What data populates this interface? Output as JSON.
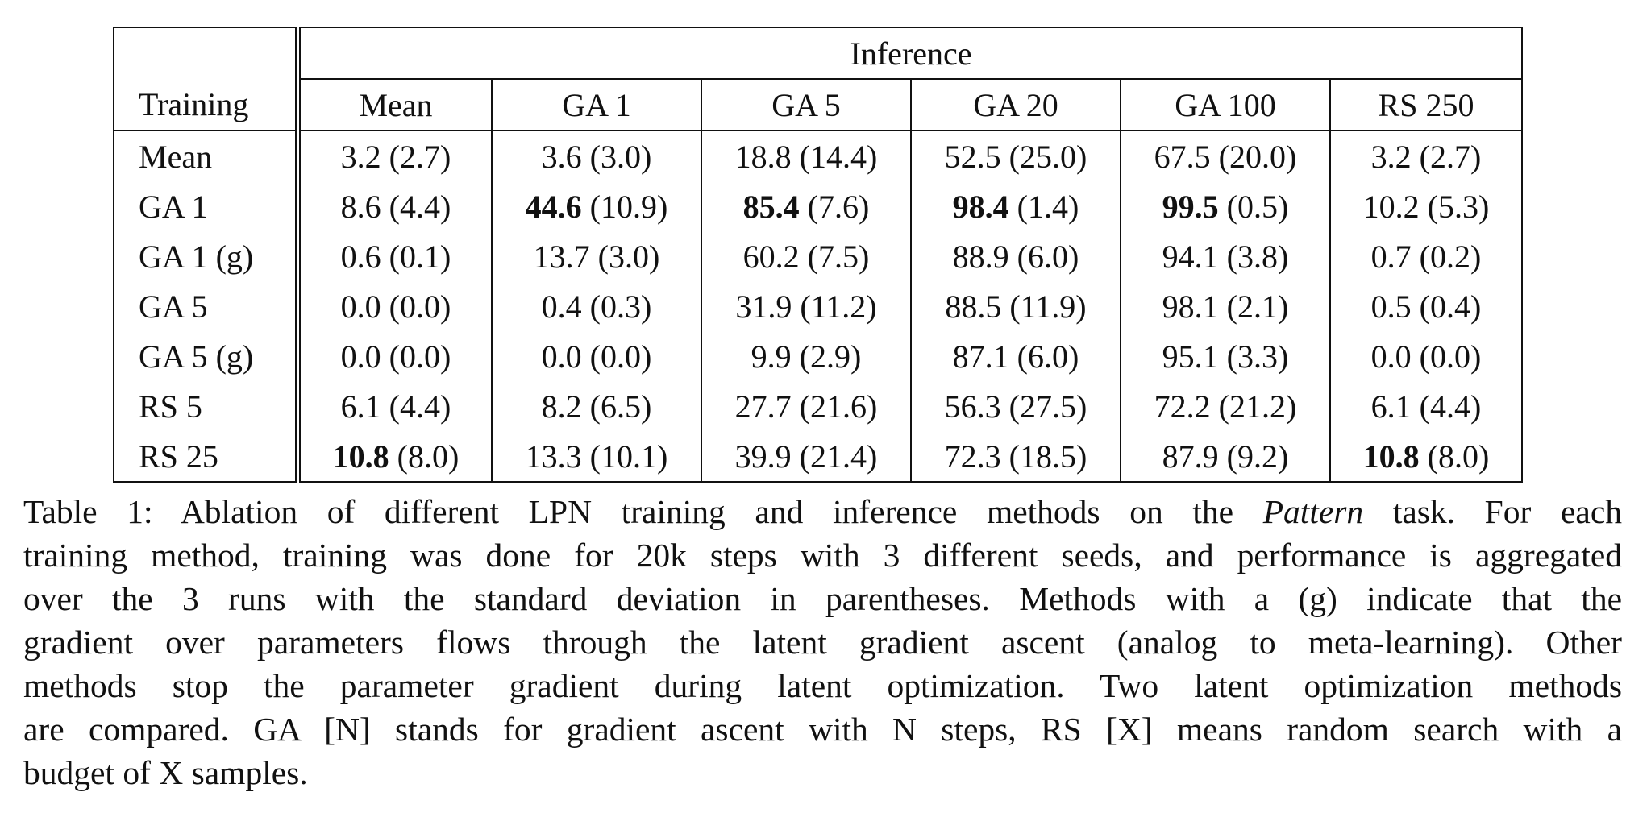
{
  "table": {
    "header": {
      "group": "Inference",
      "row_label": "Training",
      "columns": [
        "Mean",
        "GA 1",
        "GA 5",
        "GA 20",
        "GA 100",
        "RS 250"
      ]
    },
    "rows": [
      {
        "label": "Mean",
        "cells": [
          {
            "value": "3.2",
            "sd": "(2.7)",
            "bold": false
          },
          {
            "value": "3.6",
            "sd": "(3.0)",
            "bold": false
          },
          {
            "value": "18.8",
            "sd": "(14.4)",
            "bold": false
          },
          {
            "value": "52.5",
            "sd": "(25.0)",
            "bold": false
          },
          {
            "value": "67.5",
            "sd": "(20.0)",
            "bold": false
          },
          {
            "value": "3.2",
            "sd": "(2.7)",
            "bold": false
          }
        ]
      },
      {
        "label": "GA 1",
        "cells": [
          {
            "value": "8.6",
            "sd": "(4.4)",
            "bold": false
          },
          {
            "value": "44.6",
            "sd": "(10.9)",
            "bold": true
          },
          {
            "value": "85.4",
            "sd": "(7.6)",
            "bold": true
          },
          {
            "value": "98.4",
            "sd": "(1.4)",
            "bold": true
          },
          {
            "value": "99.5",
            "sd": "(0.5)",
            "bold": true
          },
          {
            "value": "10.2",
            "sd": "(5.3)",
            "bold": false
          }
        ]
      },
      {
        "label": "GA 1 (g)",
        "cells": [
          {
            "value": "0.6",
            "sd": "(0.1)",
            "bold": false
          },
          {
            "value": "13.7",
            "sd": "(3.0)",
            "bold": false
          },
          {
            "value": "60.2",
            "sd": "(7.5)",
            "bold": false
          },
          {
            "value": "88.9",
            "sd": "(6.0)",
            "bold": false
          },
          {
            "value": "94.1",
            "sd": "(3.8)",
            "bold": false
          },
          {
            "value": "0.7",
            "sd": "(0.2)",
            "bold": false
          }
        ]
      },
      {
        "label": "GA 5",
        "cells": [
          {
            "value": "0.0",
            "sd": "(0.0)",
            "bold": false
          },
          {
            "value": "0.4",
            "sd": "(0.3)",
            "bold": false
          },
          {
            "value": "31.9",
            "sd": "(11.2)",
            "bold": false
          },
          {
            "value": "88.5",
            "sd": "(11.9)",
            "bold": false
          },
          {
            "value": "98.1",
            "sd": "(2.1)",
            "bold": false
          },
          {
            "value": "0.5",
            "sd": "(0.4)",
            "bold": false
          }
        ]
      },
      {
        "label": "GA 5 (g)",
        "cells": [
          {
            "value": "0.0",
            "sd": "(0.0)",
            "bold": false
          },
          {
            "value": "0.0",
            "sd": "(0.0)",
            "bold": false
          },
          {
            "value": "9.9",
            "sd": "(2.9)",
            "bold": false
          },
          {
            "value": "87.1",
            "sd": "(6.0)",
            "bold": false
          },
          {
            "value": "95.1",
            "sd": "(3.3)",
            "bold": false
          },
          {
            "value": "0.0",
            "sd": "(0.0)",
            "bold": false
          }
        ]
      },
      {
        "label": "RS 5",
        "cells": [
          {
            "value": "6.1",
            "sd": "(4.4)",
            "bold": false
          },
          {
            "value": "8.2",
            "sd": "(6.5)",
            "bold": false
          },
          {
            "value": "27.7",
            "sd": "(21.6)",
            "bold": false
          },
          {
            "value": "56.3",
            "sd": "(27.5)",
            "bold": false
          },
          {
            "value": "72.2",
            "sd": "(21.2)",
            "bold": false
          },
          {
            "value": "6.1",
            "sd": "(4.4)",
            "bold": false
          }
        ]
      },
      {
        "label": "RS 25",
        "cells": [
          {
            "value": "10.8",
            "sd": "(8.0)",
            "bold": true
          },
          {
            "value": "13.3",
            "sd": "(10.1)",
            "bold": false
          },
          {
            "value": "39.9",
            "sd": "(21.4)",
            "bold": false
          },
          {
            "value": "72.3",
            "sd": "(18.5)",
            "bold": false
          },
          {
            "value": "87.9",
            "sd": "(9.2)",
            "bold": false
          },
          {
            "value": "10.8",
            "sd": "(8.0)",
            "bold": true
          }
        ]
      }
    ]
  },
  "caption": {
    "lines": [
      [
        {
          "text": "Table 1: Ablation of different LPN training and inference methods on the ",
          "italic": false
        },
        {
          "text": "Pattern",
          "italic": true
        },
        {
          "text": " task. For each",
          "italic": false
        }
      ],
      [
        {
          "text": "training method, training was done for 20k steps with 3 different seeds, and performance is aggregated",
          "italic": false
        }
      ],
      [
        {
          "text": "over the 3 runs with the standard deviation in parentheses. Methods with a (g) indicate that the",
          "italic": false
        }
      ],
      [
        {
          "text": "gradient over parameters flows through the latent gradient ascent (analog to meta-learning). Other",
          "italic": false
        }
      ],
      [
        {
          "text": "methods stop the parameter gradient during latent optimization. Two latent optimization methods",
          "italic": false
        }
      ],
      [
        {
          "text": "are compared. GA [N] stands for gradient ascent with N steps, RS [X] means random search with a",
          "italic": false
        }
      ],
      [
        {
          "text": "budget of X samples.",
          "italic": false
        }
      ]
    ]
  }
}
